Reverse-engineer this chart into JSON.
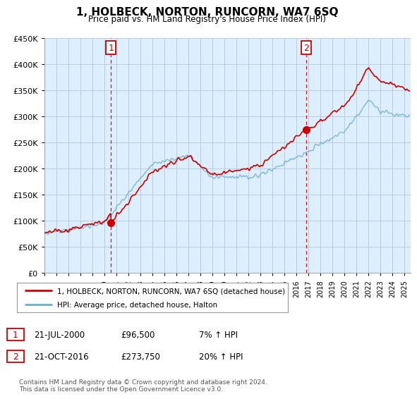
{
  "title": "1, HOLBECK, NORTON, RUNCORN, WA7 6SQ",
  "subtitle": "Price paid vs. HM Land Registry's House Price Index (HPI)",
  "legend_line1": "1, HOLBECK, NORTON, RUNCORN, WA7 6SQ (detached house)",
  "legend_line2": "HPI: Average price, detached house, Halton",
  "annotation1_date": "21-JUL-2000",
  "annotation1_price": "£96,500",
  "annotation1_hpi": "7% ↑ HPI",
  "annotation1_year": 2000.55,
  "annotation1_value": 96500,
  "annotation2_date": "21-OCT-2016",
  "annotation2_price": "£273,750",
  "annotation2_hpi": "20% ↑ HPI",
  "annotation2_year": 2016.8,
  "annotation2_value": 273750,
  "footer": "Contains HM Land Registry data © Crown copyright and database right 2024.\nThis data is licensed under the Open Government Licence v3.0.",
  "red_color": "#cc0000",
  "blue_color": "#6baed6",
  "bg_fill_color": "#ddeeff",
  "bg_color": "#ffffff",
  "grid_color": "#bbccdd",
  "ylim": [
    0,
    450000
  ],
  "xlim_start": 1995.0,
  "xlim_end": 2025.5
}
